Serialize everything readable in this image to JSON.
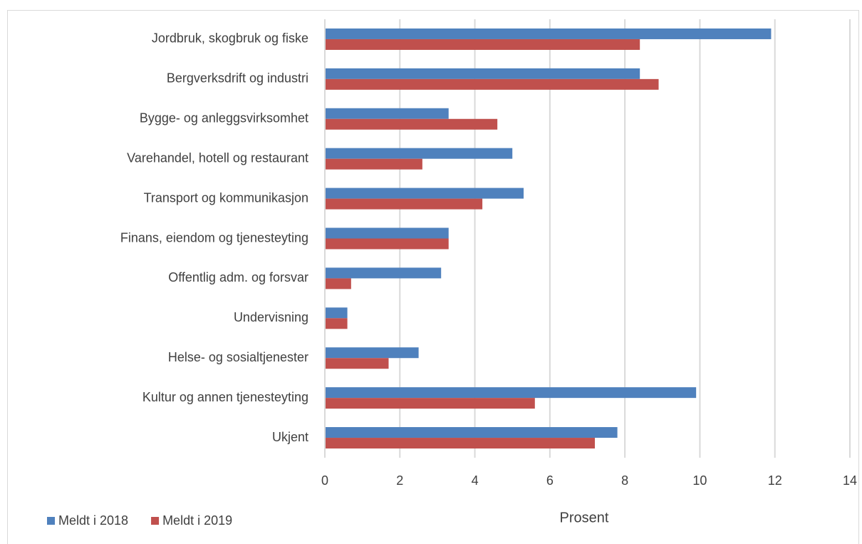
{
  "chart_data": {
    "type": "hbar",
    "categories": [
      "Jordbruk, skogbruk og fiske",
      "Bergverksdrift og industri",
      "Bygge- og anleggsvirksomhet",
      "Varehandel, hotell og restaurant",
      "Transport og kommunikasjon",
      "Finans, eiendom og tjenesteyting",
      "Offentlig adm. og forsvar",
      "Undervisning",
      "Helse- og sosialtjenester",
      "Kultur og annen tjenesteyting",
      "Ukjent"
    ],
    "series": [
      {
        "name": "Meldt i 2018",
        "color": "#4f81bd",
        "values": [
          11.9,
          8.4,
          3.3,
          5.0,
          5.3,
          3.3,
          3.1,
          0.6,
          2.5,
          9.9,
          7.8
        ]
      },
      {
        "name": "Meldt i 2019",
        "color": "#c0504d",
        "values": [
          8.4,
          8.9,
          4.6,
          2.6,
          4.2,
          3.3,
          0.7,
          0.6,
          1.7,
          5.6,
          7.2
        ]
      }
    ],
    "xlabel": "Prosent",
    "xlim": [
      0,
      14
    ],
    "xticks": [
      0,
      2,
      4,
      6,
      8,
      10,
      12,
      14
    ],
    "grid": true,
    "legend": "bottom-left"
  }
}
